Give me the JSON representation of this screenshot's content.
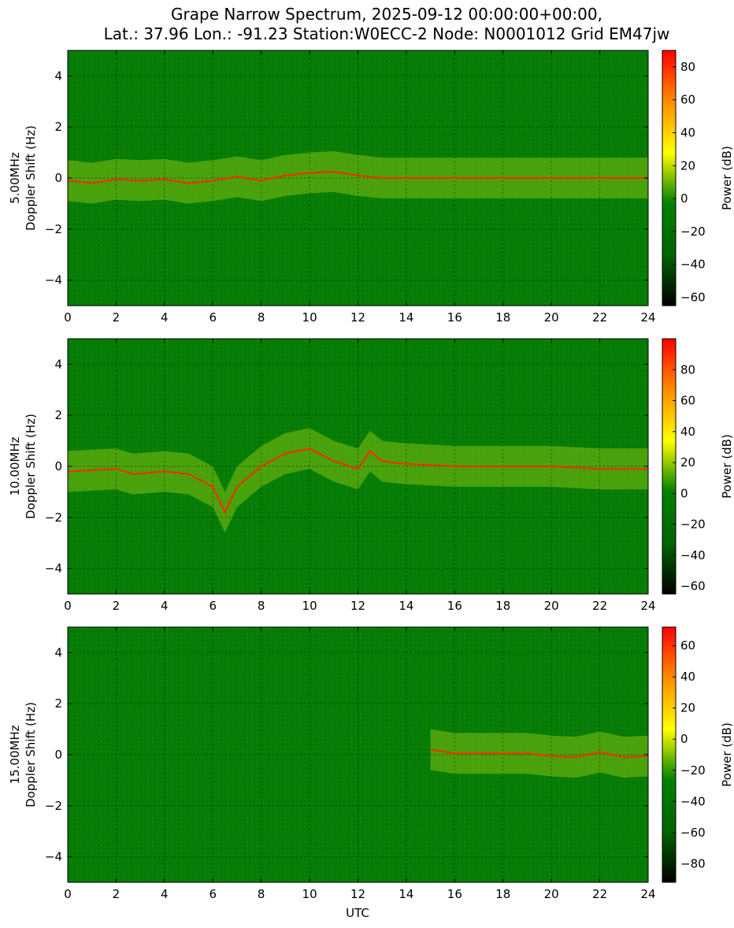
{
  "figure": {
    "title_lines": [
      "Grape Narrow Spectrum, 2025-09-12 00:00:00+00:00,",
      "Lat.: 37.96 Lon.: -91.23 Station:W0ECC-2 Node: N0001012 Grid EM47jw"
    ],
    "xlabel": "UTC"
  },
  "colors": {
    "colormap": [
      "#000000",
      "#006400",
      "#008000",
      "#ffff00",
      "#ff8c00",
      "#ff0000"
    ],
    "background": "#008000",
    "trace": "#ff2a00",
    "highlight": "#ffff33"
  },
  "chart_data": [
    {
      "type": "heatmap",
      "panel": "5.00MHz",
      "ylabel_line1": "5.00MHz",
      "ylabel_line2": "Doppler Shift (Hz)",
      "x_ticks": [
        "0",
        "2",
        "4",
        "6",
        "8",
        "10",
        "12",
        "14",
        "16",
        "18",
        "20",
        "22",
        "24"
      ],
      "y_ticks": [
        "4",
        "2",
        "0",
        "−2",
        "−4"
      ],
      "xlim": [
        0,
        24
      ],
      "ylim": [
        -5,
        5
      ],
      "grid": true,
      "colorbar": {
        "label": "Power (dB)",
        "range": [
          -65,
          90
        ],
        "ticks": [
          "80",
          "60",
          "40",
          "20",
          "0",
          "−20",
          "−40",
          "−60"
        ]
      },
      "trace": [
        [
          0,
          -0.1
        ],
        [
          1,
          -0.2
        ],
        [
          2,
          -0.05
        ],
        [
          3,
          -0.1
        ],
        [
          4,
          -0.05
        ],
        [
          5,
          -0.2
        ],
        [
          6,
          -0.1
        ],
        [
          7,
          0.05
        ],
        [
          8,
          -0.1
        ],
        [
          9,
          0.1
        ],
        [
          10,
          0.2
        ],
        [
          11,
          0.25
        ],
        [
          12,
          0.1
        ],
        [
          13,
          0.0
        ],
        [
          14,
          0.0
        ],
        [
          16,
          0.0
        ],
        [
          18,
          0.0
        ],
        [
          20,
          0.0
        ],
        [
          22,
          0.0
        ],
        [
          24,
          0.0
        ]
      ]
    },
    {
      "type": "heatmap",
      "panel": "10.00MHz",
      "ylabel_line1": "10.00MHz",
      "ylabel_line2": "Doppler Shift (Hz)",
      "x_ticks": [
        "0",
        "2",
        "4",
        "6",
        "8",
        "10",
        "12",
        "14",
        "16",
        "18",
        "20",
        "22",
        "24"
      ],
      "y_ticks": [
        "4",
        "2",
        "0",
        "−2",
        "−4"
      ],
      "xlim": [
        0,
        24
      ],
      "ylim": [
        -5,
        5
      ],
      "grid": true,
      "colorbar": {
        "label": "Power (dB)",
        "range": [
          -65,
          100
        ],
        "ticks": [
          "80",
          "60",
          "40",
          "20",
          "0",
          "−20",
          "−40",
          "−60"
        ]
      },
      "trace": [
        [
          0,
          -0.2
        ],
        [
          1,
          -0.15
        ],
        [
          2,
          -0.1
        ],
        [
          2.7,
          -0.3
        ],
        [
          4,
          -0.2
        ],
        [
          5,
          -0.3
        ],
        [
          6,
          -0.8
        ],
        [
          6.5,
          -1.8
        ],
        [
          7,
          -0.8
        ],
        [
          8,
          0.0
        ],
        [
          9,
          0.5
        ],
        [
          10,
          0.7
        ],
        [
          11,
          0.2
        ],
        [
          12,
          -0.1
        ],
        [
          12.5,
          0.6
        ],
        [
          13,
          0.2
        ],
        [
          14,
          0.1
        ],
        [
          15,
          0.05
        ],
        [
          16,
          0.0
        ],
        [
          18,
          0.0
        ],
        [
          20,
          0.0
        ],
        [
          22,
          -0.1
        ],
        [
          24,
          -0.1
        ]
      ]
    },
    {
      "type": "heatmap",
      "panel": "15.00MHz",
      "ylabel_line1": "15.00MHz",
      "ylabel_line2": "Doppler Shift (Hz)",
      "x_ticks": [
        "0",
        "2",
        "4",
        "6",
        "8",
        "10",
        "12",
        "14",
        "16",
        "18",
        "20",
        "22",
        "24"
      ],
      "y_ticks": [
        "4",
        "2",
        "0",
        "−2",
        "−4"
      ],
      "xlim": [
        0,
        24
      ],
      "ylim": [
        -5,
        5
      ],
      "grid": true,
      "colorbar": {
        "label": "Power (dB)",
        "range": [
          -92,
          72
        ],
        "ticks": [
          "60",
          "40",
          "20",
          "0",
          "−20",
          "−40",
          "−60",
          "−80"
        ]
      },
      "trace": [
        [
          15,
          0.2
        ],
        [
          16,
          0.05
        ],
        [
          18,
          0.05
        ],
        [
          19,
          0.05
        ],
        [
          20,
          -0.05
        ],
        [
          21,
          -0.1
        ],
        [
          22,
          0.1
        ],
        [
          23,
          -0.1
        ],
        [
          24,
          -0.05
        ]
      ]
    }
  ]
}
